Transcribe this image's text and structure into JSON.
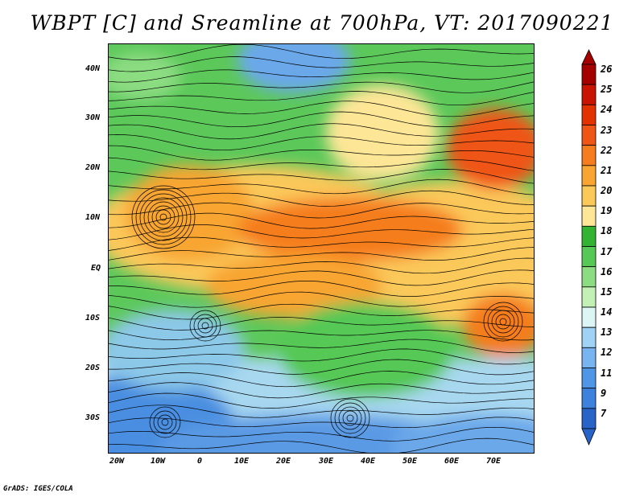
{
  "title": "WBPT [C] and Sreamline at 700hPa, VT: 2017090221",
  "credit": "GrADS: IGES/COLA",
  "map": {
    "lat_labels": [
      "40N",
      "30N",
      "20N",
      "10N",
      "EQ",
      "10S",
      "20S",
      "30S"
    ],
    "lon_labels": [
      "20W",
      "10W",
      "0",
      "10E",
      "20E",
      "30E",
      "40E",
      "50E",
      "60E",
      "70E"
    ]
  },
  "colorbar": {
    "labels": [
      "26",
      "25",
      "24",
      "23",
      "22",
      "21",
      "20",
      "19",
      "18",
      "17",
      "16",
      "15",
      "14",
      "13",
      "12",
      "11",
      "9",
      "7"
    ],
    "colors": [
      "#a50000",
      "#c81400",
      "#e13200",
      "#ef5514",
      "#f57d1e",
      "#f8a532",
      "#fbc85a",
      "#fde696",
      "#32b432",
      "#55c855",
      "#8cdc82",
      "#c3f0b4",
      "#dcf5f5",
      "#a0d2f5",
      "#78b4f0",
      "#5096e6",
      "#3c82dc",
      "#2864c8"
    ]
  }
}
